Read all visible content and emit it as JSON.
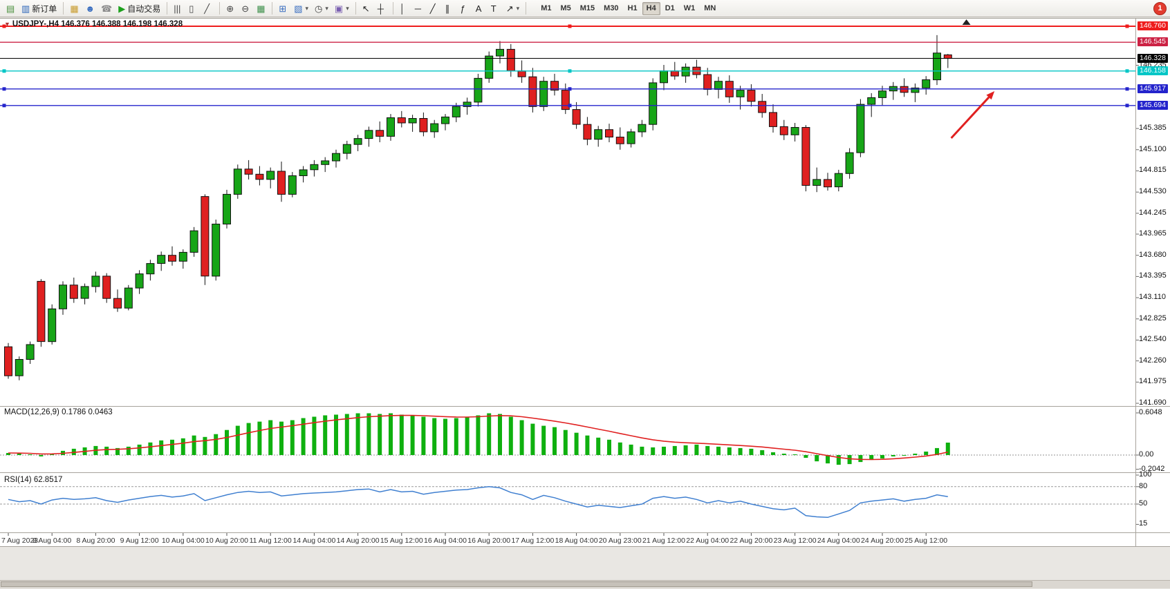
{
  "icons": {
    "collapse_caret": "▼",
    "dropdown_caret": "▾"
  },
  "toolbar": {
    "items": [
      {
        "name": "new-chart",
        "glyph": "▤",
        "color": "#4a8f3c"
      },
      {
        "name": "new-order",
        "glyph": "▥",
        "color": "#2a63b8",
        "label": "新订单"
      },
      {
        "name": "sep"
      },
      {
        "name": "market-package",
        "glyph": "▦",
        "color": "#c89a2a"
      },
      {
        "name": "community-profile",
        "glyph": "☻",
        "color": "#3a6ec0"
      },
      {
        "name": "support",
        "glyph": "☎",
        "color": "#8a8a8a"
      },
      {
        "name": "autotrading",
        "glyph": "▶",
        "color": "#1ca01c",
        "label": "自动交易"
      },
      {
        "name": "sep"
      },
      {
        "name": "bar-chart-mode",
        "glyph": "|||",
        "color": "#444"
      },
      {
        "name": "candlestick-mode",
        "glyph": "▯",
        "color": "#444"
      },
      {
        "name": "line-chart-mode",
        "glyph": "╱",
        "color": "#444"
      },
      {
        "name": "sep"
      },
      {
        "name": "zoom-in",
        "glyph": "⊕",
        "color": "#444"
      },
      {
        "name": "zoom-out",
        "glyph": "⊖",
        "color": "#444"
      },
      {
        "name": "tile-windows",
        "glyph": "▦",
        "color": "#3c8f4a"
      },
      {
        "name": "sep"
      },
      {
        "name": "indicators",
        "glyph": "⊞",
        "color": "#3a6ec0"
      },
      {
        "name": "indicator-list",
        "glyph": "▧",
        "color": "#3a6ec0",
        "dropdown": true
      },
      {
        "name": "periods",
        "glyph": "◷",
        "color": "#444",
        "dropdown": true
      },
      {
        "name": "templates",
        "glyph": "▣",
        "color": "#7a5fb0",
        "dropdown": true
      },
      {
        "name": "sep"
      },
      {
        "name": "cursor",
        "glyph": "↖",
        "color": "#222"
      },
      {
        "name": "crosshair",
        "glyph": "┼",
        "color": "#222"
      },
      {
        "name": "sep"
      },
      {
        "name": "vertical-line",
        "glyph": "│",
        "color": "#222"
      },
      {
        "name": "horizontal-line",
        "glyph": "─",
        "color": "#222"
      },
      {
        "name": "trendline",
        "glyph": "╱",
        "color": "#222"
      },
      {
        "name": "equidistant-channel",
        "glyph": "∥",
        "color": "#222"
      },
      {
        "name": "fibonacci",
        "glyph": "ƒ",
        "color": "#222"
      },
      {
        "name": "text",
        "glyph": "A",
        "color": "#222"
      },
      {
        "name": "text-label",
        "glyph": "T",
        "color": "#222"
      },
      {
        "name": "arrows",
        "glyph": "↗",
        "color": "#222",
        "dropdown": true
      },
      {
        "name": "sep"
      }
    ],
    "timeframes": [
      "M1",
      "M5",
      "M15",
      "M30",
      "H1",
      "H4",
      "D1",
      "W1",
      "MN"
    ],
    "active_timeframe": "H4",
    "notification_badge": "1"
  },
  "panels": {
    "symbol_line": "USDJPY-,H4 146.376 146.388 146.198 146.328",
    "macd_line": "MACD(12,26,9) 0.1786 0.0463",
    "rsi_line": "RSI(14) 62.8517"
  },
  "chart_data": [
    {
      "type": "candlestick",
      "title": "USDJPY-,H4",
      "symbol": "USDJPY-",
      "timeframe": "H4",
      "ohlc_current": {
        "open": "146.376",
        "high": "146.388",
        "low": "146.198",
        "close": "146.328"
      },
      "ylim": [
        141.653,
        146.834
      ],
      "bull_color": "#17a517",
      "bear_color": "#df2020",
      "label_every": 4,
      "x_labels": [
        "7 Aug 2023",
        "8 Aug 04:00",
        "8 Aug 20:00",
        "9 Aug 12:00",
        "10 Aug 04:00",
        "10 Aug 20:00",
        "11 Aug 12:00",
        "14 Aug 04:00",
        "14 Aug 20:00",
        "15 Aug 12:00",
        "16 Aug 04:00",
        "16 Aug 20:00",
        "17 Aug 12:00",
        "18 Aug 04:00",
        "20 Aug 23:00",
        "21 Aug 12:00",
        "22 Aug 04:00",
        "22 Aug 20:00",
        "23 Aug 12:00",
        "24 Aug 04:00",
        "24 Aug 20:00",
        "25 Aug 12:00"
      ],
      "candles": [
        [
          142.45,
          142.5,
          142.02,
          142.06
        ],
        [
          142.06,
          142.32,
          142.0,
          142.28
        ],
        [
          142.28,
          142.52,
          142.22,
          142.48
        ],
        [
          143.33,
          143.36,
          142.45,
          142.52
        ],
        [
          142.52,
          143.02,
          142.48,
          142.96
        ],
        [
          142.96,
          143.33,
          142.88,
          143.28
        ],
        [
          143.28,
          143.38,
          143.04,
          143.1
        ],
        [
          143.1,
          143.3,
          143.02,
          143.26
        ],
        [
          143.26,
          143.46,
          143.18,
          143.4
        ],
        [
          143.4,
          143.44,
          143.04,
          143.1
        ],
        [
          143.1,
          143.22,
          142.92,
          142.97
        ],
        [
          142.97,
          143.28,
          142.94,
          143.24
        ],
        [
          143.24,
          143.48,
          143.16,
          143.43
        ],
        [
          143.43,
          143.62,
          143.34,
          143.57
        ],
        [
          143.57,
          143.73,
          143.47,
          143.68
        ],
        [
          143.68,
          143.8,
          143.54,
          143.6
        ],
        [
          143.6,
          143.76,
          143.5,
          143.72
        ],
        [
          143.72,
          144.06,
          143.66,
          144.01
        ],
        [
          144.47,
          144.5,
          143.28,
          143.4
        ],
        [
          143.4,
          144.16,
          143.34,
          144.1
        ],
        [
          144.1,
          144.56,
          144.04,
          144.5
        ],
        [
          144.5,
          144.9,
          144.44,
          144.84
        ],
        [
          144.84,
          144.96,
          144.7,
          144.77
        ],
        [
          144.77,
          144.88,
          144.62,
          144.7
        ],
        [
          144.7,
          144.86,
          144.58,
          144.81
        ],
        [
          144.81,
          144.94,
          144.4,
          144.5
        ],
        [
          144.5,
          144.8,
          144.46,
          144.75
        ],
        [
          144.75,
          144.88,
          144.66,
          144.83
        ],
        [
          144.83,
          144.96,
          144.74,
          144.9
        ],
        [
          144.9,
          145.0,
          144.8,
          144.95
        ],
        [
          144.95,
          145.1,
          144.86,
          145.05
        ],
        [
          145.05,
          145.22,
          144.97,
          145.17
        ],
        [
          145.17,
          145.3,
          145.08,
          145.25
        ],
        [
          145.25,
          145.41,
          145.14,
          145.36
        ],
        [
          145.36,
          145.48,
          145.2,
          145.28
        ],
        [
          145.28,
          145.58,
          145.22,
          145.53
        ],
        [
          145.53,
          145.62,
          145.4,
          145.46
        ],
        [
          145.46,
          145.57,
          145.34,
          145.52
        ],
        [
          145.52,
          145.6,
          145.28,
          145.34
        ],
        [
          145.34,
          145.5,
          145.26,
          145.45
        ],
        [
          145.45,
          145.58,
          145.36,
          145.54
        ],
        [
          145.54,
          145.73,
          145.47,
          145.68
        ],
        [
          145.68,
          145.8,
          145.57,
          145.74
        ],
        [
          145.74,
          146.12,
          145.68,
          146.06
        ],
        [
          146.06,
          146.42,
          146.0,
          146.36
        ],
        [
          146.36,
          146.56,
          146.26,
          146.45
        ],
        [
          146.45,
          146.52,
          146.08,
          146.16
        ],
        [
          146.16,
          146.3,
          146.0,
          146.08
        ],
        [
          146.08,
          146.2,
          145.6,
          145.68
        ],
        [
          145.68,
          146.08,
          145.62,
          146.02
        ],
        [
          146.02,
          146.12,
          145.83,
          145.9
        ],
        [
          145.9,
          145.99,
          145.58,
          145.64
        ],
        [
          145.64,
          145.74,
          145.38,
          145.44
        ],
        [
          145.44,
          145.54,
          145.16,
          145.24
        ],
        [
          145.24,
          145.42,
          145.14,
          145.37
        ],
        [
          145.37,
          145.45,
          145.2,
          145.27
        ],
        [
          145.27,
          145.4,
          145.1,
          145.18
        ],
        [
          145.18,
          145.38,
          145.13,
          145.34
        ],
        [
          145.34,
          145.5,
          145.27,
          145.44
        ],
        [
          145.44,
          146.06,
          145.36,
          146.0
        ],
        [
          146.0,
          146.24,
          145.9,
          146.16
        ],
        [
          146.16,
          146.28,
          146.04,
          146.09
        ],
        [
          146.09,
          146.26,
          146.0,
          146.21
        ],
        [
          146.21,
          146.31,
          146.06,
          146.11
        ],
        [
          146.11,
          146.2,
          145.83,
          145.91
        ],
        [
          145.91,
          146.08,
          145.79,
          146.02
        ],
        [
          146.02,
          146.1,
          145.73,
          145.81
        ],
        [
          145.81,
          145.96,
          145.64,
          145.9
        ],
        [
          145.9,
          145.98,
          145.68,
          145.75
        ],
        [
          145.75,
          145.85,
          145.53,
          145.6
        ],
        [
          145.6,
          145.71,
          145.33,
          145.41
        ],
        [
          145.41,
          145.5,
          145.23,
          145.3
        ],
        [
          145.3,
          145.46,
          145.21,
          145.4
        ],
        [
          145.4,
          145.43,
          144.54,
          144.62
        ],
        [
          144.62,
          144.86,
          144.53,
          144.7
        ],
        [
          144.7,
          144.79,
          144.55,
          144.6
        ],
        [
          144.6,
          144.83,
          144.54,
          144.78
        ],
        [
          144.78,
          145.12,
          144.71,
          145.06
        ],
        [
          145.06,
          145.78,
          145.0,
          145.71
        ],
        [
          145.71,
          145.86,
          145.54,
          145.8
        ],
        [
          145.8,
          145.96,
          145.69,
          145.89
        ],
        [
          145.89,
          146.01,
          145.77,
          145.95
        ],
        [
          145.95,
          146.06,
          145.81,
          145.87
        ],
        [
          145.87,
          145.99,
          145.74,
          145.93
        ],
        [
          145.93,
          146.09,
          145.84,
          146.04
        ],
        [
          146.04,
          146.64,
          145.97,
          146.4
        ],
        [
          146.376,
          146.388,
          146.198,
          146.328
        ]
      ],
      "lines": [
        {
          "price": 146.76,
          "label": "146.760",
          "color": "#ee1c1c",
          "width": 2,
          "handles": true
        },
        {
          "price": 146.545,
          "label": "146.545",
          "color": "#cc2244",
          "width": 1.4
        },
        {
          "price": 146.328,
          "label": "146.328",
          "color": "#000000",
          "width": 1,
          "role": "current-price-line"
        },
        {
          "price": 146.158,
          "label": "146.158",
          "color": "#00c6c6",
          "width": 1.4,
          "handles": true
        },
        {
          "price": 145.917,
          "label": "145.917",
          "color": "#2424cc",
          "width": 1.4,
          "handles": true
        },
        {
          "price": 145.694,
          "label": "145.694",
          "color": "#2424cc",
          "width": 1.4,
          "handles": true
        }
      ],
      "scale_ticks": [
        "146.235",
        "145.385",
        "145.100",
        "144.815",
        "144.530",
        "144.245",
        "143.965",
        "143.680",
        "143.395",
        "143.110",
        "142.825",
        "142.540",
        "142.260",
        "141.975",
        "141.690"
      ],
      "arrow": {
        "x_frac_start": 0.813,
        "price_start": 145.256,
        "x_frac_end": 0.85,
        "price_end": 145.887,
        "color": "#e02020"
      },
      "shift_marker_x_frac": 0.826
    },
    {
      "type": "bar",
      "name": "MACD",
      "params": "(12,26,9)",
      "values_display": "0.1786 0.0463",
      "ylim": [
        -0.248,
        0.664
      ],
      "y_ticks": [
        "0.6048",
        "0.00",
        "-0.2042"
      ],
      "bar_color": "#0fb00f",
      "signal_color": "#e02020",
      "signal_period": 9,
      "values": [
        0.03,
        0.02,
        0.01,
        -0.02,
        0.02,
        0.06,
        0.09,
        0.11,
        0.13,
        0.12,
        0.1,
        0.12,
        0.15,
        0.18,
        0.21,
        0.22,
        0.24,
        0.28,
        0.26,
        0.3,
        0.36,
        0.42,
        0.46,
        0.48,
        0.5,
        0.48,
        0.5,
        0.53,
        0.55,
        0.57,
        0.58,
        0.59,
        0.6,
        0.6,
        0.59,
        0.6,
        0.58,
        0.57,
        0.55,
        0.53,
        0.52,
        0.53,
        0.54,
        0.57,
        0.6,
        0.59,
        0.55,
        0.5,
        0.45,
        0.42,
        0.4,
        0.36,
        0.32,
        0.28,
        0.25,
        0.22,
        0.18,
        0.15,
        0.12,
        0.11,
        0.12,
        0.13,
        0.14,
        0.15,
        0.13,
        0.12,
        0.11,
        0.1,
        0.09,
        0.07,
        0.04,
        0.02,
        0.01,
        -0.04,
        -0.09,
        -0.12,
        -0.14,
        -0.13,
        -0.1,
        -0.07,
        -0.05,
        -0.02,
        0.0,
        0.02,
        0.05,
        0.1,
        0.1786
      ]
    },
    {
      "type": "line",
      "name": "RSI",
      "params": "(14)",
      "value_display": "62.8517",
      "ylim": [
        0,
        100
      ],
      "y_ticks": [
        "100",
        "80",
        "50",
        "15"
      ],
      "levels": [
        80,
        50
      ],
      "line_color": "#3f7fd0",
      "values": [
        58,
        54,
        56,
        50,
        57,
        60,
        58,
        59,
        61,
        56,
        53,
        57,
        60,
        63,
        65,
        62,
        64,
        68,
        56,
        61,
        66,
        70,
        72,
        70,
        71,
        64,
        66,
        68,
        69,
        70,
        71,
        73,
        75,
        76,
        71,
        75,
        71,
        72,
        67,
        70,
        72,
        74,
        75,
        78,
        80,
        78,
        70,
        66,
        58,
        65,
        61,
        55,
        50,
        45,
        48,
        46,
        44,
        47,
        50,
        60,
        63,
        60,
        62,
        58,
        52,
        56,
        52,
        55,
        50,
        46,
        42,
        40,
        43,
        30,
        28,
        27,
        33,
        39,
        52,
        55,
        57,
        59,
        55,
        58,
        60,
        66,
        62.8517
      ]
    }
  ]
}
